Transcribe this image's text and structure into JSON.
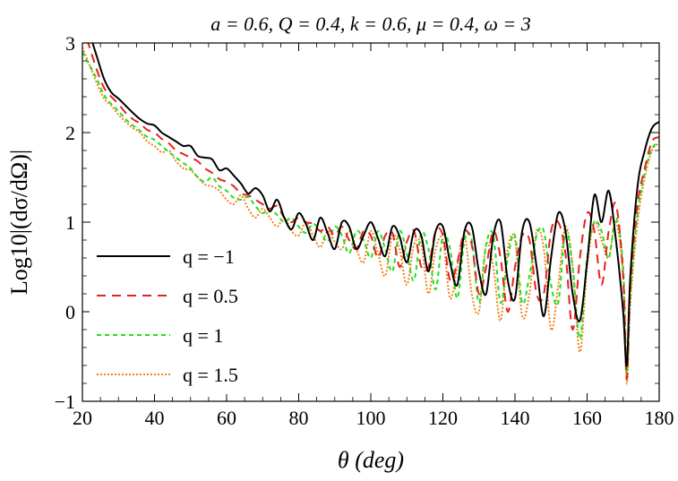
{
  "chart_data": {
    "type": "line",
    "title": "a = 0.6, Q = 0.4, k = 0.6, μ = 0.4, ω = 3",
    "xlabel": "θ (deg)",
    "ylabel": "Log10|(dσ/dΩ)|",
    "xlim": [
      20,
      180
    ],
    "ylim": [
      -1,
      3
    ],
    "xticks": [
      "20",
      "40",
      "60",
      "80",
      "100",
      "120",
      "140",
      "160",
      "180"
    ],
    "yticks": [
      "3",
      "2",
      "1",
      "0",
      "−1"
    ],
    "grid": false,
    "legend_placement": "lower-left",
    "series": [
      {
        "name": "q = −1",
        "color": "#000000",
        "dash": "solid",
        "x": [
          20,
          22,
          24,
          26,
          28,
          30,
          32,
          34,
          36,
          38,
          40,
          42,
          44,
          46,
          48,
          50,
          52,
          54,
          56,
          58,
          60,
          62,
          64,
          66,
          68,
          70,
          72,
          74,
          76,
          78,
          80,
          82,
          84,
          86,
          88,
          90,
          92,
          94,
          96,
          98,
          100,
          102,
          104,
          106,
          108,
          110,
          112,
          114,
          116,
          118,
          120,
          122,
          124,
          126,
          128,
          130,
          132,
          134,
          136,
          138,
          140,
          142,
          144,
          146,
          148,
          150,
          152,
          154,
          156,
          158,
          160,
          162,
          164,
          166,
          168,
          170,
          171,
          172,
          174,
          176,
          178,
          180
        ],
        "y": [
          3.3,
          3.1,
          2.85,
          2.6,
          2.45,
          2.38,
          2.3,
          2.22,
          2.15,
          2.1,
          2.08,
          2.0,
          1.95,
          1.9,
          1.85,
          1.85,
          1.74,
          1.72,
          1.7,
          1.58,
          1.6,
          1.52,
          1.43,
          1.32,
          1.38,
          1.3,
          1.12,
          1.25,
          1.05,
          0.92,
          1.1,
          0.98,
          0.8,
          1.05,
          0.88,
          0.7,
          1.0,
          0.95,
          0.7,
          0.85,
          1.0,
          0.82,
          0.62,
          0.95,
          0.84,
          0.55,
          0.9,
          0.85,
          0.45,
          0.9,
          0.95,
          0.55,
          0.3,
          0.9,
          0.95,
          0.45,
          0.2,
          0.85,
          1.0,
          0.35,
          0.15,
          0.9,
          1.0,
          0.5,
          -0.05,
          0.6,
          1.1,
          0.9,
          0.2,
          -0.1,
          0.55,
          1.3,
          1.0,
          1.35,
          0.8,
          0.0,
          -0.6,
          0.4,
          1.4,
          1.8,
          2.05,
          2.12
        ]
      },
      {
        "name": "q = 0.5",
        "color": "#e8211c",
        "dash": "10,7",
        "x": [
          20,
          22,
          24,
          26,
          28,
          30,
          32,
          34,
          36,
          38,
          40,
          42,
          44,
          46,
          48,
          50,
          52,
          54,
          56,
          58,
          60,
          62,
          64,
          66,
          68,
          70,
          72,
          74,
          76,
          78,
          80,
          82,
          84,
          86,
          88,
          90,
          92,
          94,
          96,
          98,
          100,
          102,
          104,
          106,
          108,
          110,
          112,
          114,
          116,
          118,
          120,
          122,
          124,
          126,
          128,
          130,
          132,
          134,
          136,
          138,
          140,
          142,
          144,
          146,
          148,
          150,
          152,
          154,
          156,
          158,
          160,
          162,
          164,
          166,
          168,
          170,
          171,
          172,
          174,
          176,
          178,
          180
        ],
        "y": [
          3.2,
          2.95,
          2.7,
          2.5,
          2.4,
          2.32,
          2.22,
          2.15,
          2.1,
          2.03,
          2.0,
          1.93,
          1.88,
          1.8,
          1.76,
          1.72,
          1.68,
          1.6,
          1.55,
          1.48,
          1.45,
          1.4,
          1.32,
          1.3,
          1.25,
          1.2,
          1.15,
          1.18,
          1.05,
          1.0,
          1.05,
          1.0,
          0.98,
          0.9,
          0.95,
          0.85,
          0.95,
          0.8,
          0.7,
          0.9,
          0.85,
          0.6,
          0.85,
          0.88,
          0.5,
          0.78,
          0.9,
          0.5,
          0.5,
          0.9,
          0.85,
          0.35,
          0.55,
          0.9,
          0.75,
          0.2,
          0.5,
          0.9,
          0.6,
          0.0,
          0.5,
          0.85,
          0.8,
          0.2,
          0.2,
          0.9,
          1.0,
          0.65,
          -0.2,
          0.6,
          1.1,
          0.9,
          0.3,
          0.9,
          1.2,
          0.4,
          -0.75,
          0.3,
          1.2,
          1.6,
          1.9,
          1.95
        ]
      },
      {
        "name": "q = 1",
        "color": "#22e01c",
        "dash": "5,4",
        "x": [
          20,
          22,
          24,
          26,
          28,
          30,
          32,
          34,
          36,
          38,
          40,
          42,
          44,
          46,
          48,
          50,
          52,
          54,
          56,
          58,
          60,
          62,
          64,
          66,
          68,
          70,
          72,
          74,
          76,
          78,
          80,
          82,
          84,
          86,
          88,
          90,
          92,
          94,
          96,
          98,
          100,
          102,
          104,
          106,
          108,
          110,
          112,
          114,
          116,
          118,
          120,
          122,
          124,
          126,
          128,
          130,
          132,
          134,
          136,
          138,
          140,
          142,
          144,
          146,
          148,
          150,
          152,
          154,
          156,
          158,
          160,
          162,
          164,
          166,
          168,
          170,
          171,
          172,
          174,
          176,
          178,
          180
        ],
        "y": [
          2.9,
          2.75,
          2.6,
          2.42,
          2.32,
          2.24,
          2.15,
          2.08,
          2.02,
          1.95,
          1.92,
          1.85,
          1.78,
          1.72,
          1.66,
          1.6,
          1.5,
          1.45,
          1.5,
          1.4,
          1.35,
          1.27,
          1.25,
          1.28,
          1.18,
          1.1,
          1.15,
          1.08,
          1.0,
          1.05,
          0.95,
          0.88,
          0.98,
          0.9,
          0.78,
          0.95,
          0.85,
          0.65,
          0.9,
          0.8,
          0.6,
          0.9,
          0.7,
          0.45,
          0.9,
          0.65,
          0.35,
          0.88,
          0.7,
          0.25,
          0.85,
          0.7,
          0.15,
          0.8,
          0.8,
          0.1,
          0.75,
          0.85,
          0.1,
          0.6,
          0.85,
          0.1,
          0.4,
          0.85,
          0.9,
          0.3,
          0.1,
          0.9,
          0.5,
          -0.3,
          0.6,
          1.0,
          0.9,
          0.6,
          1.05,
          0.5,
          -0.7,
          0.2,
          1.1,
          1.55,
          1.82,
          1.9
        ]
      },
      {
        "name": "q = 1.5",
        "color": "#f57f17",
        "dash": "2,2",
        "x": [
          20,
          22,
          24,
          26,
          28,
          30,
          32,
          34,
          36,
          38,
          40,
          42,
          44,
          46,
          48,
          50,
          52,
          54,
          56,
          58,
          60,
          62,
          64,
          66,
          68,
          70,
          72,
          74,
          76,
          78,
          80,
          82,
          84,
          86,
          88,
          90,
          92,
          94,
          96,
          98,
          100,
          102,
          104,
          106,
          108,
          110,
          112,
          114,
          116,
          118,
          120,
          122,
          124,
          126,
          128,
          130,
          132,
          134,
          136,
          138,
          140,
          142,
          144,
          146,
          148,
          150,
          152,
          154,
          156,
          158,
          160,
          162,
          164,
          166,
          168,
          170,
          171,
          172,
          174,
          176,
          178,
          180
        ],
        "y": [
          2.95,
          2.75,
          2.55,
          2.38,
          2.3,
          2.2,
          2.12,
          2.05,
          2.0,
          1.9,
          1.85,
          1.78,
          1.8,
          1.68,
          1.6,
          1.58,
          1.5,
          1.42,
          1.4,
          1.35,
          1.25,
          1.2,
          1.3,
          1.15,
          1.05,
          1.15,
          1.05,
          0.95,
          1.05,
          0.9,
          0.85,
          1.0,
          0.85,
          0.72,
          0.9,
          0.78,
          0.7,
          0.9,
          0.7,
          0.55,
          0.9,
          0.65,
          0.4,
          0.85,
          0.7,
          0.3,
          0.75,
          0.75,
          0.2,
          0.7,
          0.8,
          0.15,
          0.5,
          0.85,
          0.2,
          0.0,
          0.75,
          0.5,
          -0.1,
          0.7,
          0.8,
          -0.05,
          0.2,
          0.9,
          0.7,
          -0.2,
          0.3,
          0.95,
          0.5,
          -0.45,
          0.5,
          1.0,
          0.8,
          0.6,
          1.0,
          0.4,
          -0.8,
          0.1,
          1.0,
          1.5,
          1.8,
          1.88
        ]
      }
    ]
  }
}
